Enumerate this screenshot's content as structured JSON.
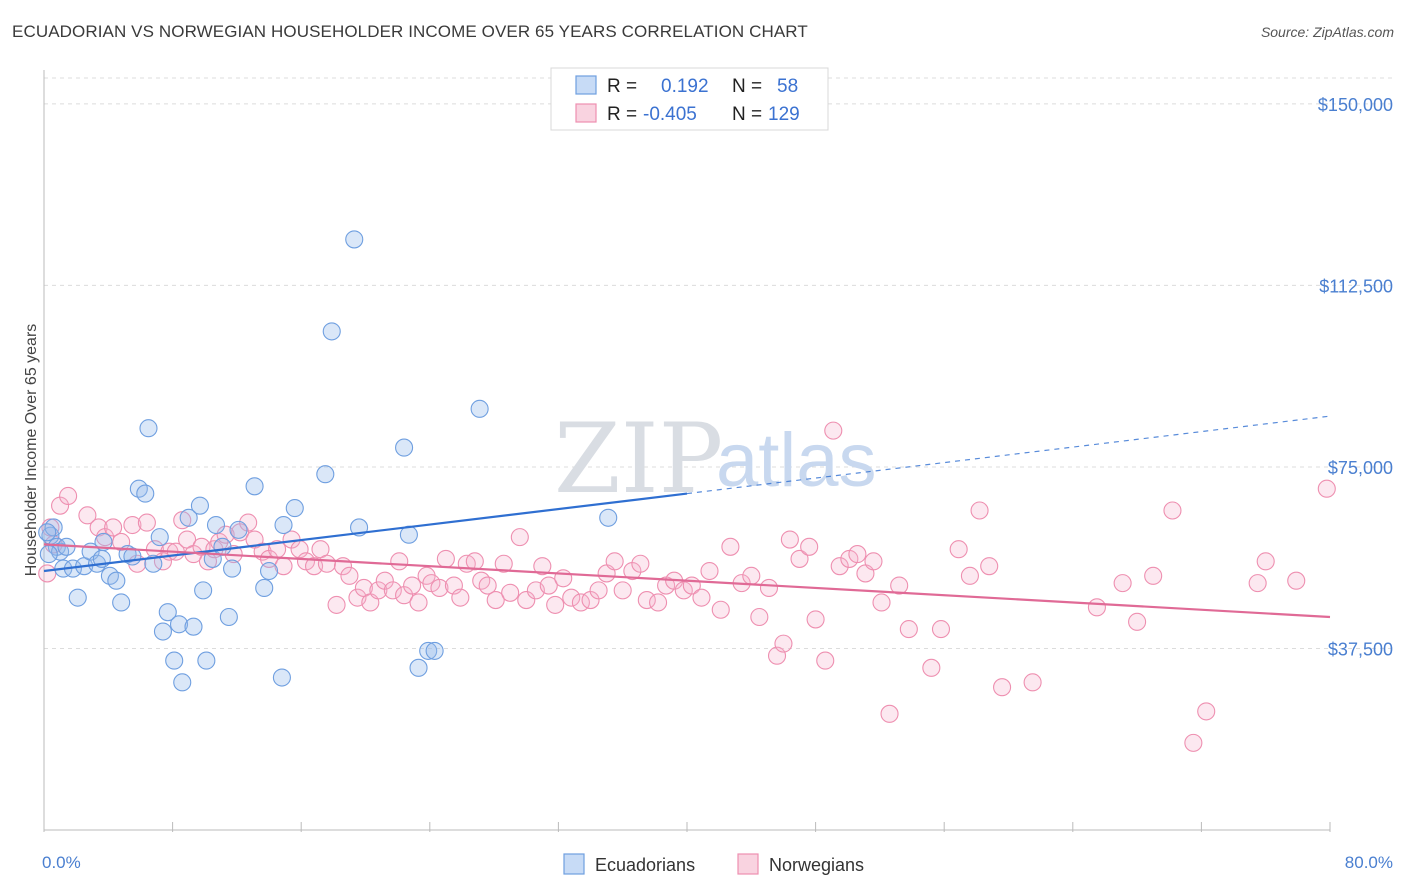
{
  "title": "ECUADORIAN VS NORWEGIAN HOUSEHOLDER INCOME OVER 65 YEARS CORRELATION CHART",
  "source": "Source: ZipAtlas.com",
  "watermark": {
    "zip": "ZIP",
    "atlas": "atlas"
  },
  "colors": {
    "blue": "#6f9fe0",
    "pink": "#ee8fb0",
    "blue_line": "#2f6fd1",
    "pink_line": "#e06a96",
    "tick_text": "#4a7fd0"
  },
  "legend": {
    "r_label": "R =",
    "n_label": "N =",
    "rows": [
      {
        "name": "Ecuadorians",
        "r": "0.192",
        "n": "58",
        "color": "#6f9fe0"
      },
      {
        "name": "Norwegians",
        "r": "-0.405",
        "n": "129",
        "color": "#ee8fb0"
      }
    ]
  },
  "chart_data": {
    "type": "scatter",
    "title": "ECUADORIAN VS NORWEGIAN HOUSEHOLDER INCOME OVER 65 YEARS CORRELATION CHART",
    "xlabel": "",
    "ylabel": "Householder Income Over 65 years",
    "xlim": [
      0,
      80
    ],
    "ylim": [
      0,
      157000
    ],
    "x_tick_labels": [
      "0.0%",
      "80.0%"
    ],
    "y_ticks": [
      {
        "value": 37500,
        "label": "$37,500"
      },
      {
        "value": 75000,
        "label": "$75,000"
      },
      {
        "value": 112500,
        "label": "$112,500"
      },
      {
        "value": 150000,
        "label": "$150,000"
      }
    ],
    "grid": true,
    "legend_placement": "top-center",
    "series": [
      {
        "name": "Ecuadorians",
        "color": "#6f9fe0",
        "trend": {
          "x": [
            0,
            40
          ],
          "y": [
            53500,
            69500
          ],
          "dashed_extension_to": [
            80,
            85500
          ]
        },
        "points": [
          [
            0.4,
            60800
          ],
          [
            0.6,
            62500
          ],
          [
            0.8,
            58500
          ],
          [
            1.0,
            57500
          ],
          [
            1.2,
            54000
          ],
          [
            1.4,
            58500
          ],
          [
            1.8,
            54000
          ],
          [
            2.1,
            48000
          ],
          [
            2.5,
            54500
          ],
          [
            2.9,
            57500
          ],
          [
            3.3,
            55000
          ],
          [
            3.6,
            56000
          ],
          [
            3.7,
            59500
          ],
          [
            4.1,
            52500
          ],
          [
            4.5,
            51500
          ],
          [
            4.8,
            47000
          ],
          [
            5.2,
            57000
          ],
          [
            5.5,
            56500
          ],
          [
            5.9,
            70500
          ],
          [
            6.3,
            69500
          ],
          [
            6.5,
            83000
          ],
          [
            6.8,
            55000
          ],
          [
            7.2,
            60500
          ],
          [
            7.4,
            41000
          ],
          [
            7.7,
            45000
          ],
          [
            8.1,
            35000
          ],
          [
            8.4,
            42500
          ],
          [
            8.6,
            30500
          ],
          [
            9.0,
            64500
          ],
          [
            9.3,
            42000
          ],
          [
            9.7,
            67000
          ],
          [
            9.9,
            49500
          ],
          [
            10.1,
            35000
          ],
          [
            10.5,
            56000
          ],
          [
            10.7,
            63000
          ],
          [
            11.1,
            58500
          ],
          [
            11.5,
            44000
          ],
          [
            11.7,
            54000
          ],
          [
            12.1,
            62000
          ],
          [
            13.1,
            71000
          ],
          [
            13.7,
            50000
          ],
          [
            14.0,
            53500
          ],
          [
            14.9,
            63000
          ],
          [
            15.6,
            66500
          ],
          [
            14.8,
            31500
          ],
          [
            17.5,
            73500
          ],
          [
            17.9,
            103000
          ],
          [
            19.3,
            122000
          ],
          [
            19.6,
            62500
          ],
          [
            22.4,
            79000
          ],
          [
            22.7,
            61000
          ],
          [
            23.3,
            33500
          ],
          [
            23.9,
            37000
          ],
          [
            24.3,
            37000
          ],
          [
            27.1,
            87000
          ],
          [
            35.1,
            64500
          ],
          [
            0.2,
            61500
          ],
          [
            0.3,
            57000
          ]
        ]
      },
      {
        "name": "Norwegians",
        "color": "#ee8fb0",
        "trend": {
          "x": [
            0,
            80
          ],
          "y": [
            59000,
            44000
          ]
        },
        "points": [
          [
            0.2,
            53000
          ],
          [
            0.4,
            62500
          ],
          [
            0.6,
            59000
          ],
          [
            1.0,
            67000
          ],
          [
            1.5,
            69000
          ],
          [
            2.7,
            65000
          ],
          [
            3.4,
            62500
          ],
          [
            3.8,
            60500
          ],
          [
            4.3,
            62500
          ],
          [
            4.8,
            59500
          ],
          [
            5.5,
            63000
          ],
          [
            5.8,
            55000
          ],
          [
            6.4,
            63500
          ],
          [
            6.9,
            58000
          ],
          [
            7.4,
            55500
          ],
          [
            7.8,
            57500
          ],
          [
            8.2,
            57500
          ],
          [
            8.6,
            64000
          ],
          [
            8.9,
            60000
          ],
          [
            9.3,
            57000
          ],
          [
            9.8,
            58500
          ],
          [
            10.2,
            55500
          ],
          [
            10.6,
            58000
          ],
          [
            10.9,
            59500
          ],
          [
            11.3,
            61000
          ],
          [
            11.8,
            57000
          ],
          [
            12.2,
            61500
          ],
          [
            12.7,
            63500
          ],
          [
            13.1,
            60000
          ],
          [
            13.6,
            57500
          ],
          [
            14.0,
            56000
          ],
          [
            14.5,
            58000
          ],
          [
            14.9,
            54500
          ],
          [
            15.4,
            60000
          ],
          [
            15.9,
            58000
          ],
          [
            16.3,
            55500
          ],
          [
            16.8,
            54500
          ],
          [
            17.2,
            58000
          ],
          [
            17.6,
            55000
          ],
          [
            18.2,
            46500
          ],
          [
            18.6,
            54500
          ],
          [
            19.0,
            52500
          ],
          [
            19.5,
            48000
          ],
          [
            19.9,
            50000
          ],
          [
            20.3,
            47000
          ],
          [
            20.8,
            49500
          ],
          [
            21.2,
            51500
          ],
          [
            21.7,
            49500
          ],
          [
            22.1,
            55500
          ],
          [
            22.4,
            48500
          ],
          [
            22.9,
            50500
          ],
          [
            23.3,
            47000
          ],
          [
            23.8,
            52500
          ],
          [
            24.1,
            51000
          ],
          [
            24.6,
            50000
          ],
          [
            25.0,
            56000
          ],
          [
            25.5,
            50500
          ],
          [
            25.9,
            48000
          ],
          [
            26.3,
            55000
          ],
          [
            26.8,
            55500
          ],
          [
            27.2,
            51500
          ],
          [
            27.6,
            50500
          ],
          [
            28.1,
            47500
          ],
          [
            28.6,
            55000
          ],
          [
            29.0,
            49000
          ],
          [
            29.6,
            60500
          ],
          [
            30.0,
            47500
          ],
          [
            30.6,
            49500
          ],
          [
            31.0,
            54500
          ],
          [
            31.4,
            50500
          ],
          [
            31.8,
            46500
          ],
          [
            32.3,
            52000
          ],
          [
            32.8,
            48000
          ],
          [
            33.4,
            47000
          ],
          [
            34.0,
            47500
          ],
          [
            34.5,
            49500
          ],
          [
            35.0,
            53000
          ],
          [
            35.5,
            55500
          ],
          [
            36.0,
            49500
          ],
          [
            36.6,
            53500
          ],
          [
            37.1,
            55000
          ],
          [
            37.5,
            47500
          ],
          [
            38.2,
            47000
          ],
          [
            38.7,
            50500
          ],
          [
            39.2,
            51500
          ],
          [
            39.8,
            49500
          ],
          [
            40.3,
            50500
          ],
          [
            40.9,
            48000
          ],
          [
            41.4,
            53500
          ],
          [
            42.1,
            45500
          ],
          [
            42.7,
            58500
          ],
          [
            43.4,
            51000
          ],
          [
            44.0,
            52500
          ],
          [
            44.5,
            44000
          ],
          [
            45.1,
            50000
          ],
          [
            45.6,
            36000
          ],
          [
            46.0,
            38500
          ],
          [
            46.4,
            60000
          ],
          [
            47.0,
            56000
          ],
          [
            47.6,
            58500
          ],
          [
            48.0,
            43500
          ],
          [
            48.6,
            35000
          ],
          [
            49.1,
            82500
          ],
          [
            49.5,
            54500
          ],
          [
            50.1,
            56000
          ],
          [
            50.6,
            57000
          ],
          [
            51.1,
            53000
          ],
          [
            51.6,
            55500
          ],
          [
            52.1,
            47000
          ],
          [
            52.6,
            24000
          ],
          [
            53.2,
            50500
          ],
          [
            53.8,
            41500
          ],
          [
            55.2,
            33500
          ],
          [
            55.8,
            41500
          ],
          [
            56.9,
            58000
          ],
          [
            57.6,
            52500
          ],
          [
            58.2,
            66000
          ],
          [
            58.8,
            54500
          ],
          [
            59.6,
            29500
          ],
          [
            61.5,
            30500
          ],
          [
            65.5,
            46000
          ],
          [
            67.1,
            51000
          ],
          [
            68.0,
            43000
          ],
          [
            69.0,
            52500
          ],
          [
            70.2,
            66000
          ],
          [
            71.5,
            18000
          ],
          [
            72.3,
            24500
          ],
          [
            75.5,
            51000
          ],
          [
            76.0,
            55500
          ],
          [
            77.9,
            51500
          ],
          [
            79.8,
            70500
          ]
        ]
      }
    ]
  }
}
